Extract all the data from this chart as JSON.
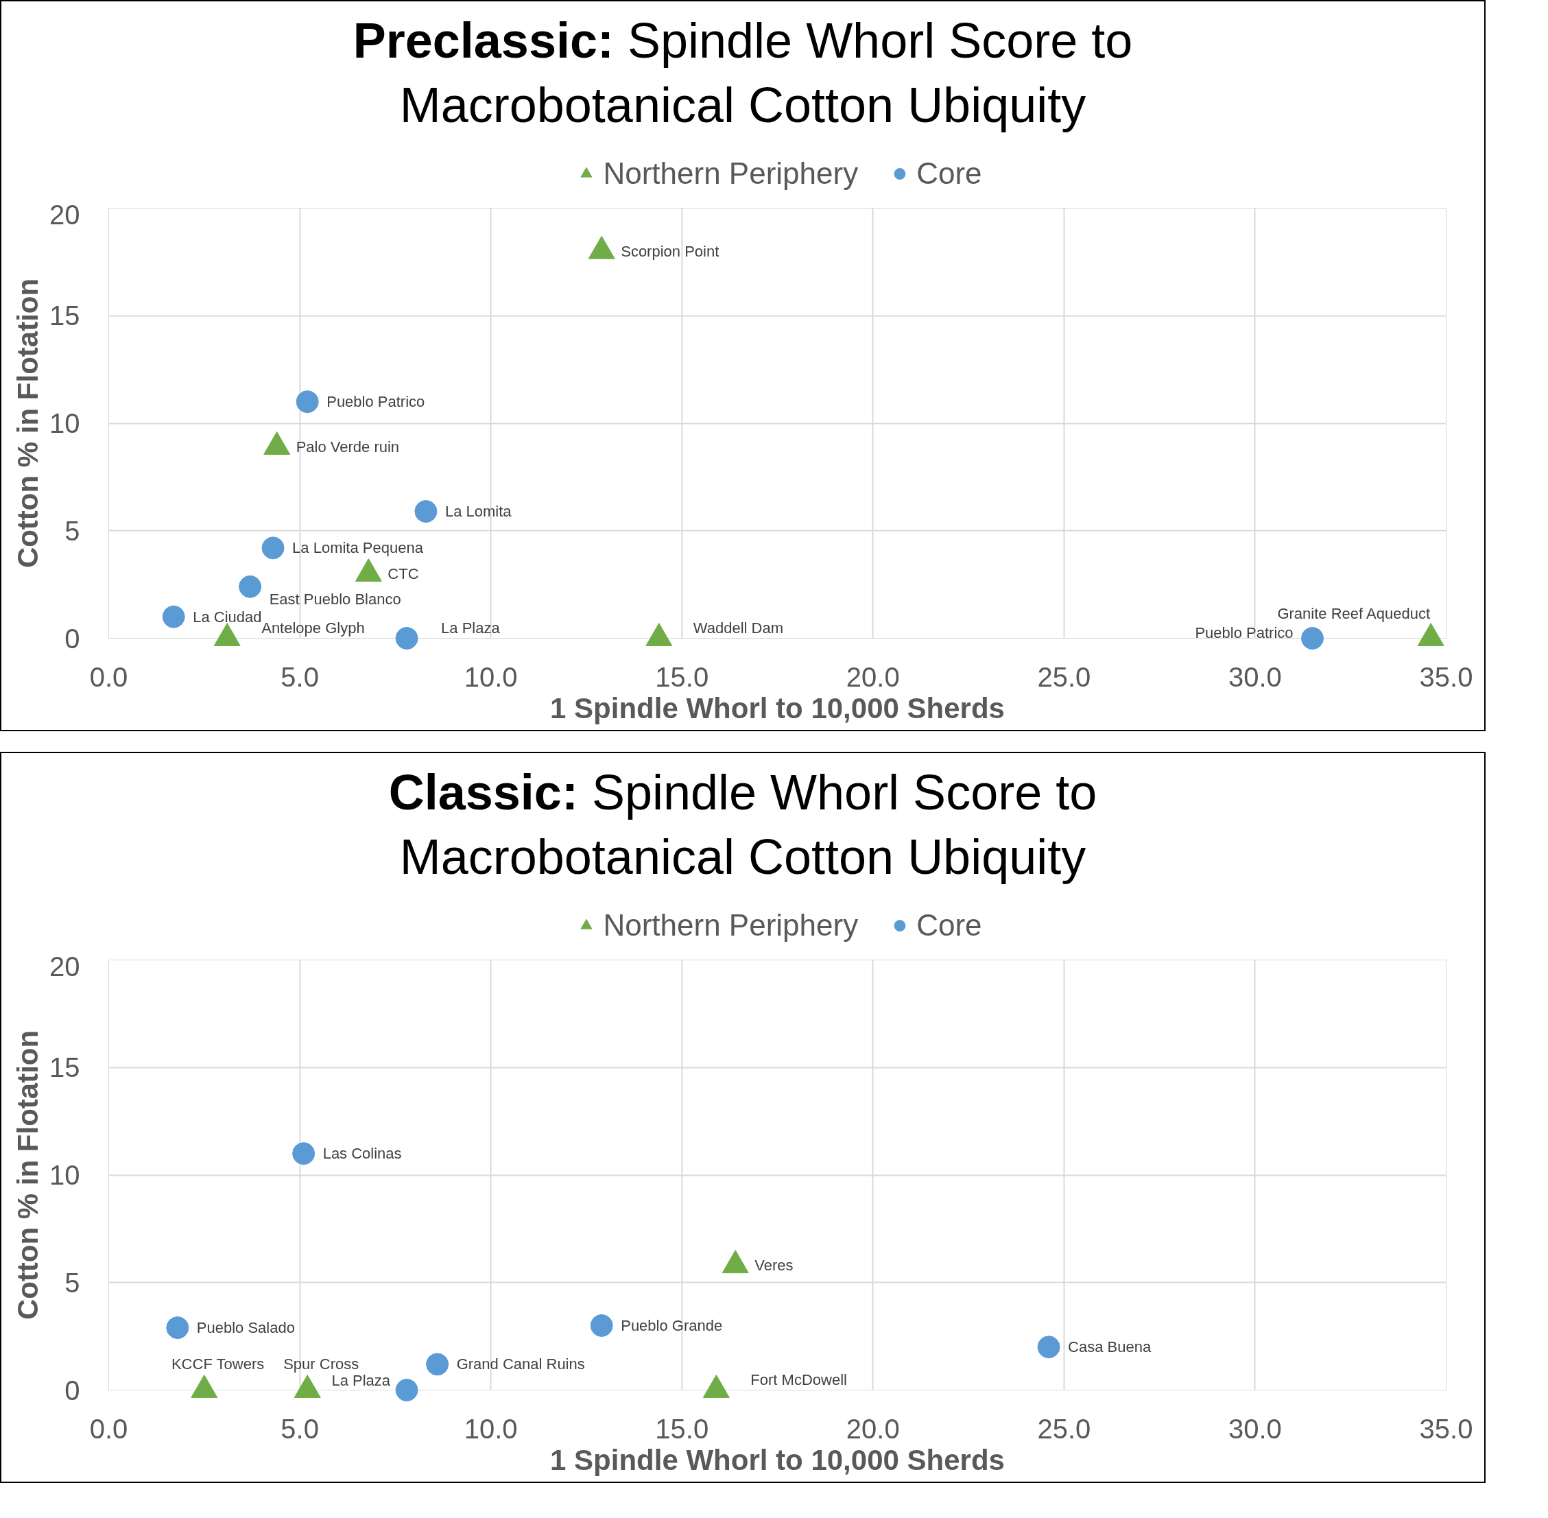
{
  "chart_data": [
    {
      "type": "scatter",
      "title": "Preclassic: Spindle Whorl Score to Macrobotanical Cotton Ubiquity",
      "xlabel": "1 Spindle Whorl to 10,000 Sherds",
      "ylabel": "Cotton % in Flotation",
      "xlim": [
        0,
        35
      ],
      "xticks": [
        {
          "value": 0,
          "label": "0.0"
        },
        {
          "value": 5,
          "label": "5.0"
        },
        {
          "value": 10,
          "label": "10.0"
        },
        {
          "value": 15,
          "label": "15.0"
        },
        {
          "value": 20,
          "label": "20.0"
        },
        {
          "value": 25,
          "label": "25.0"
        },
        {
          "value": 30,
          "label": "30.0"
        },
        {
          "value": 35,
          "label": "35.0"
        }
      ],
      "ylim": [
        0,
        20
      ],
      "yticks": [
        0,
        5,
        10,
        15,
        20
      ],
      "grid": true,
      "legend": "top",
      "series": [
        {
          "name": "Northern Periphery",
          "color": "#70ad47",
          "marker": "triangle",
          "x": [
            12.9,
            4.4,
            6.8,
            3.1,
            14.4,
            34.6
          ],
          "values": [
            18.0,
            8.9,
            3.0,
            0,
            0,
            0
          ],
          "value_labels": [
            "Scorpion Point",
            "Palo Verde ruin",
            "CTC",
            "Antelope Glyph",
            "Waddell Dam",
            "Granite Reef Aqueduct"
          ]
        },
        {
          "name": "Core",
          "color": "#5b9bd5",
          "marker": "circle",
          "x": [
            5.2,
            8.3,
            4.3,
            3.7,
            1.7,
            7.8,
            31.5
          ],
          "values": [
            11.0,
            5.9,
            4.2,
            2.4,
            1.0,
            0,
            0
          ],
          "value_labels": [
            "Pueblo Patrico",
            "La Lomita",
            "La Lomita Pequena",
            "East Pueblo Blanco",
            "La Ciudad",
            "La Plaza",
            "Pueblo Patrico"
          ]
        }
      ]
    },
    {
      "type": "scatter",
      "title": "Classic: Spindle Whorl Score to Macrobotanical Cotton Ubiquity",
      "xlabel": "1 Spindle Whorl to 10,000 Sherds",
      "ylabel": "Cotton % in Flotation",
      "xlim": [
        0,
        35
      ],
      "xticks": [
        {
          "value": 0,
          "label": "0.0"
        },
        {
          "value": 5,
          "label": "5.0"
        },
        {
          "value": 10,
          "label": "10.0"
        },
        {
          "value": 15,
          "label": "15.0"
        },
        {
          "value": 20,
          "label": "20.0"
        },
        {
          "value": 25,
          "label": "25.0"
        },
        {
          "value": 30,
          "label": "30.0"
        },
        {
          "value": 35,
          "label": "35.0"
        }
      ],
      "ylim": [
        0,
        20
      ],
      "yticks": [
        0,
        5,
        10,
        15,
        20
      ],
      "grid": true,
      "legend": "top",
      "series": [
        {
          "name": "Northern Periphery",
          "color": "#70ad47",
          "marker": "triangle",
          "x": [
            16.4,
            2.5,
            5.2,
            15.9
          ],
          "values": [
            5.8,
            0,
            0,
            0
          ],
          "value_labels": [
            "Veres",
            "KCCF Towers",
            "Spur Cross",
            "Fort McDowell"
          ]
        },
        {
          "name": "Core",
          "color": "#5b9bd5",
          "marker": "circle",
          "x": [
            5.1,
            1.8,
            12.9,
            24.6,
            8.6,
            7.8
          ],
          "values": [
            11.0,
            2.9,
            3.0,
            2.0,
            1.2,
            0
          ],
          "value_labels": [
            "Las Colinas",
            "Pueblo Salado",
            "Pueblo Grande",
            "Casa Buena",
            "Grand Canal Ruins",
            "La Plaza"
          ]
        }
      ]
    }
  ]
}
